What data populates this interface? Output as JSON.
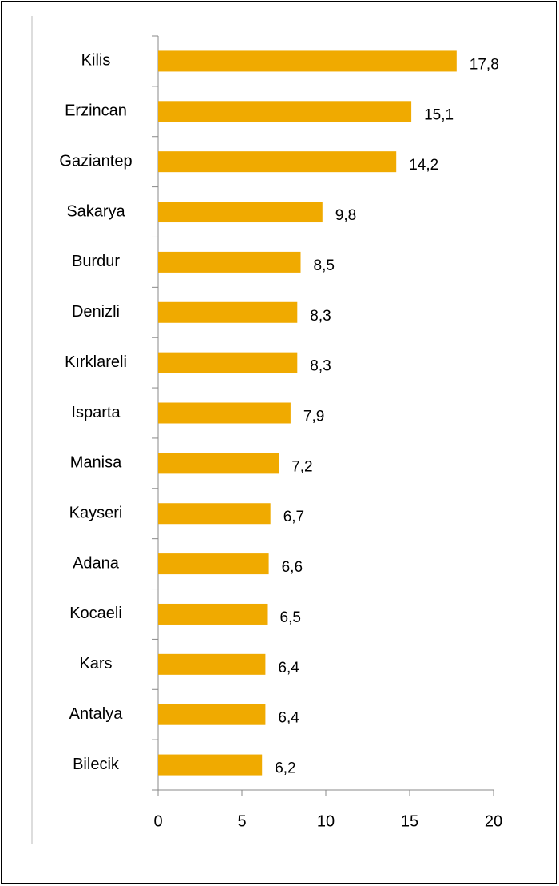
{
  "chart_data": {
    "type": "bar",
    "orientation": "horizontal",
    "categories": [
      "Kilis",
      "Erzincan",
      "Gaziantep",
      "Sakarya",
      "Burdur",
      "Denizli",
      "Kırklareli",
      "Isparta",
      "Manisa",
      "Kayseri",
      "Adana",
      "Kocaeli",
      "Kars",
      "Antalya",
      "Bilecik"
    ],
    "values": [
      17.8,
      15.1,
      14.2,
      9.8,
      8.5,
      8.3,
      8.3,
      7.9,
      7.2,
      6.7,
      6.6,
      6.5,
      6.4,
      6.4,
      6.2
    ],
    "value_labels": [
      "17,8",
      "15,1",
      "14,2",
      "9,8",
      "8,5",
      "8,3",
      "8,3",
      "7,9",
      "7,2",
      "6,7",
      "6,6",
      "6,5",
      "6,4",
      "6,4",
      "6,2"
    ],
    "color": "#f0aa00",
    "xlim": [
      0,
      20
    ],
    "xticks": [
      0,
      5,
      10,
      15,
      20
    ]
  }
}
